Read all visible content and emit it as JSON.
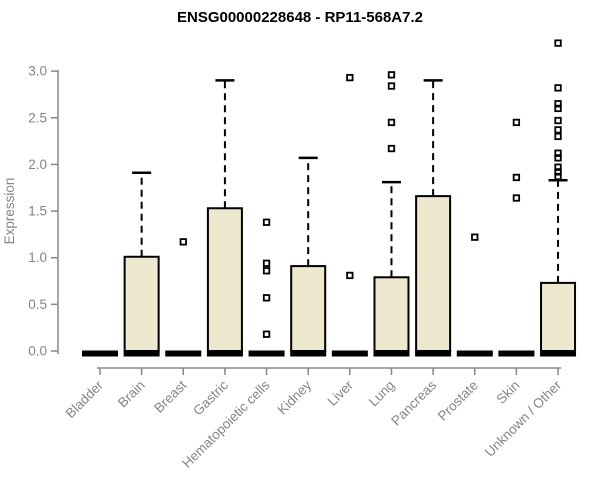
{
  "title": "ENSG00000228648 - RP11-568A7.2",
  "colors": {
    "box_fill": "#EDE8CE",
    "box_border": "#000000",
    "axis_line": "#888888",
    "tick_text": "#858585",
    "title_text": "#000000"
  },
  "chart_data": {
    "type": "boxplot",
    "title": "ENSG00000228648 - RP11-568A7.2",
    "xlabel": "",
    "ylabel": "Expression",
    "ylim": [
      0,
      3.3
    ],
    "yticks": [
      "0.0",
      "0.5",
      "1.0",
      "1.5",
      "2.0",
      "2.5",
      "3.0"
    ],
    "grid": false,
    "legend": "none",
    "categories": [
      "Bladder",
      "Brain",
      "Breast",
      "Gastric",
      "Hematopoietic cells",
      "Kidney",
      "Liver",
      "Lung",
      "Pancreas",
      "Prostate",
      "Skin",
      "Unknown / Other"
    ],
    "boxes": [
      {
        "category": "Bladder",
        "min": 0,
        "q1": 0,
        "median": 0,
        "q3": 0,
        "max": 0,
        "outliers": []
      },
      {
        "category": "Brain",
        "min": 0,
        "q1": 0,
        "median": 0,
        "q3": 1.01,
        "max": 1.91,
        "outliers": []
      },
      {
        "category": "Breast",
        "min": 0,
        "q1": 0,
        "median": 0,
        "q3": 0,
        "max": 0,
        "outliers": [
          1.17
        ]
      },
      {
        "category": "Gastric",
        "min": 0,
        "q1": 0,
        "median": 0,
        "q3": 1.53,
        "max": 2.9,
        "outliers": []
      },
      {
        "category": "Hematopoietic cells",
        "min": 0,
        "q1": 0,
        "median": 0,
        "q3": 0,
        "max": 0,
        "outliers": [
          1.38,
          0.94,
          0.86,
          0.57,
          0.18
        ]
      },
      {
        "category": "Kidney",
        "min": 0,
        "q1": 0,
        "median": 0,
        "q3": 0.91,
        "max": 2.07,
        "outliers": []
      },
      {
        "category": "Liver",
        "min": 0,
        "q1": 0,
        "median": 0,
        "q3": 0,
        "max": 0,
        "outliers": [
          2.93,
          0.81
        ]
      },
      {
        "category": "Lung",
        "min": 0,
        "q1": 0,
        "median": 0,
        "q3": 0.79,
        "max": 1.81,
        "outliers": [
          2.96,
          2.84,
          2.45,
          2.17
        ]
      },
      {
        "category": "Pancreas",
        "min": 0,
        "q1": 0,
        "median": 0,
        "q3": 1.66,
        "max": 2.9,
        "outliers": []
      },
      {
        "category": "Prostate",
        "min": 0,
        "q1": 0,
        "median": 0,
        "q3": 0,
        "max": 0,
        "outliers": [
          1.22
        ]
      },
      {
        "category": "Skin",
        "min": 0,
        "q1": 0,
        "median": 0,
        "q3": 0,
        "max": 0,
        "outliers": [
          2.45,
          1.86,
          1.64
        ]
      },
      {
        "category": "Unknown / Other",
        "min": 0,
        "q1": 0,
        "median": 0,
        "q3": 0.73,
        "max": 1.83,
        "outliers": [
          3.3,
          2.82,
          2.65,
          2.6,
          2.47,
          2.37,
          2.3,
          2.12,
          2.07,
          1.97,
          1.92,
          1.87
        ]
      }
    ]
  }
}
